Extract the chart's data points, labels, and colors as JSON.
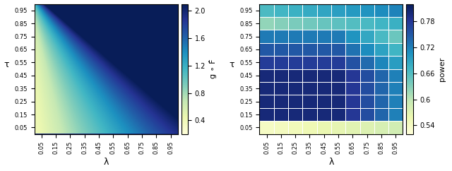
{
  "lambda_vals": [
    0.05,
    0.15,
    0.25,
    0.35,
    0.45,
    0.55,
    0.65,
    0.75,
    0.85,
    0.95
  ],
  "tau_vals": [
    0.05,
    0.15,
    0.25,
    0.35,
    0.45,
    0.55,
    0.65,
    0.75,
    0.85,
    0.95
  ],
  "xlabel": "λ",
  "ylabel": "τ",
  "cbar1_label": "g ∘ F̂",
  "cbar2_label": "power",
  "cbar1_ticks": [
    0.4,
    0.8,
    1.2,
    1.6,
    2.0
  ],
  "cbar2_ticks": [
    0.54,
    0.6,
    0.66,
    0.72,
    0.78
  ],
  "cmap": "YlGnBu",
  "tick_labels": [
    "0.05",
    "0.15",
    "0.25",
    "0.35",
    "0.45",
    "0.55",
    "0.65",
    "0.75",
    "0.85",
    "0.95"
  ],
  "figsize": [
    6.4,
    2.42
  ],
  "dpi": 100,
  "fontsize": 7
}
